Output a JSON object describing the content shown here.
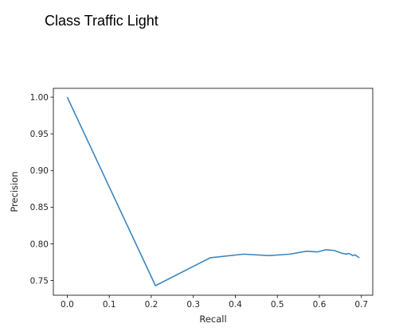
{
  "header": {
    "title": "Class Traffic Light"
  },
  "chart_data": {
    "type": "line",
    "title": "",
    "xlabel": "Recall",
    "ylabel": "Precision",
    "xlim": [
      -0.033,
      0.727
    ],
    "ylim": [
      0.73,
      1.012
    ],
    "xticks": [
      0.0,
      0.1,
      0.2,
      0.3,
      0.4,
      0.5,
      0.6,
      0.7
    ],
    "xtick_labels": [
      "0.0",
      "0.1",
      "0.2",
      "0.3",
      "0.4",
      "0.5",
      "0.6",
      "0.7"
    ],
    "yticks": [
      0.75,
      0.8,
      0.85,
      0.9,
      0.95,
      1.0
    ],
    "ytick_labels": [
      "0.75",
      "0.80",
      "0.85",
      "0.90",
      "0.95",
      "1.00"
    ],
    "grid": false,
    "colors": {
      "line": "#3b86c0",
      "axes": "#000000"
    },
    "series": [
      {
        "name": "Traffic Light",
        "x": [
          0.0,
          0.21,
          0.34,
          0.42,
          0.48,
          0.53,
          0.57,
          0.595,
          0.615,
          0.635,
          0.655,
          0.665,
          0.67,
          0.68,
          0.685,
          0.69,
          0.695
        ],
        "y": [
          1.0,
          0.743,
          0.781,
          0.786,
          0.784,
          0.786,
          0.79,
          0.789,
          0.792,
          0.791,
          0.787,
          0.786,
          0.787,
          0.784,
          0.785,
          0.783,
          0.781
        ]
      }
    ]
  }
}
